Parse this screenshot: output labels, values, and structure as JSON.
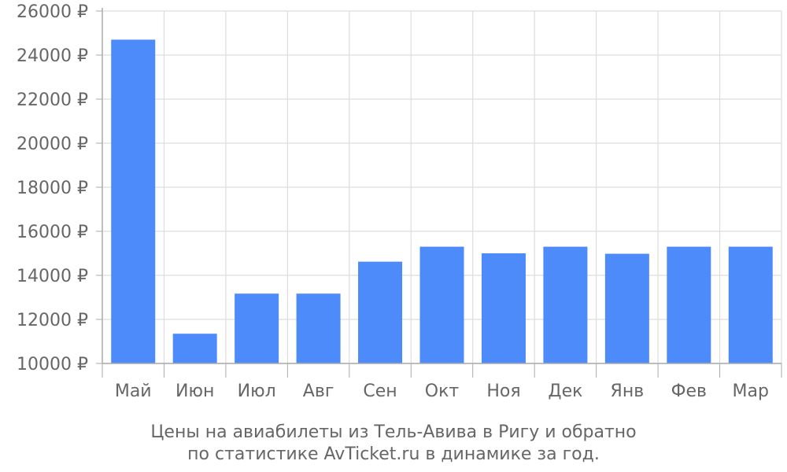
{
  "chart_data": {
    "type": "bar",
    "categories": [
      "Май",
      "Июн",
      "Июл",
      "Авг",
      "Сен",
      "Окт",
      "Ноя",
      "Дек",
      "Янв",
      "Фев",
      "Мар"
    ],
    "values": [
      24700,
      11350,
      13170,
      13170,
      14620,
      15300,
      15000,
      15300,
      14980,
      15300,
      15300
    ],
    "y_tick_labels": [
      "10000 ₽",
      "12000 ₽",
      "14000 ₽",
      "16000 ₽",
      "18000 ₽",
      "20000 ₽",
      "22000 ₽",
      "24000 ₽",
      "26000 ₽"
    ],
    "y_ticks": [
      10000,
      12000,
      14000,
      16000,
      18000,
      20000,
      22000,
      24000,
      26000
    ],
    "ylim": [
      10000,
      26000
    ],
    "grid": true,
    "bar_color": "#4e8bfa",
    "grid_color": "#dddddd",
    "axis_color": "#aaaaaa",
    "text_color": "#666666",
    "caption": {
      "line1": "Цены на авиабилеты из Тель-Авива в Ригу и обратно",
      "line2": "по статистике AvTicket.ru в динамике за год."
    }
  }
}
